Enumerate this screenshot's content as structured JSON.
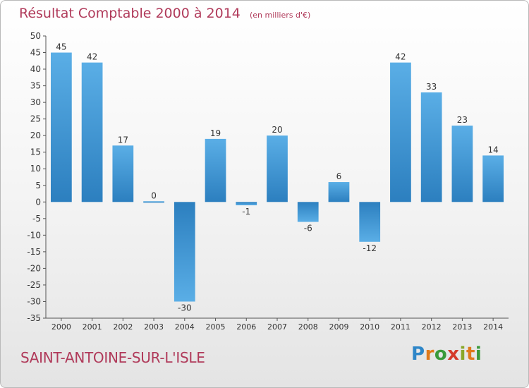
{
  "title": "Résultat Comptable 2000 à 2014",
  "subtitle": "(en milliers d'€)",
  "commune": "SAINT-ANTOINE-SUR-L'ISLE",
  "logo": "Proxiti",
  "colors": {
    "title": "#b03a5a",
    "bar_light": "#5aaee6",
    "bar_dark": "#2c7fbf",
    "axis": "#555555"
  },
  "chart_data": {
    "type": "bar",
    "categories": [
      "2000",
      "2001",
      "2002",
      "2003",
      "2004",
      "2005",
      "2006",
      "2007",
      "2008",
      "2009",
      "2010",
      "2011",
      "2012",
      "2013",
      "2014"
    ],
    "values": [
      45,
      42,
      17,
      0,
      -30,
      19,
      -1,
      20,
      -6,
      6,
      -12,
      42,
      33,
      23,
      14
    ],
    "data_labels": [
      "45",
      "42",
      "17",
      "0",
      "-30",
      "19",
      "-1",
      "20",
      "-6",
      "6",
      "-12",
      "42",
      "33",
      "23",
      "14"
    ],
    "ylim": [
      -35,
      50
    ],
    "yticks": [
      50,
      45,
      40,
      35,
      30,
      25,
      20,
      15,
      10,
      5,
      0,
      -5,
      -10,
      -15,
      -20,
      -25,
      -30,
      -35
    ],
    "ytick_labels": [
      "50",
      "45",
      "40",
      "35",
      "30",
      "25",
      "20",
      "15",
      "10",
      "5",
      "0",
      "-5",
      "-10",
      "-15",
      "-20",
      "-25",
      "-30",
      "-35"
    ],
    "xlabel": "",
    "ylabel": "",
    "grid": false,
    "legend": "none"
  }
}
